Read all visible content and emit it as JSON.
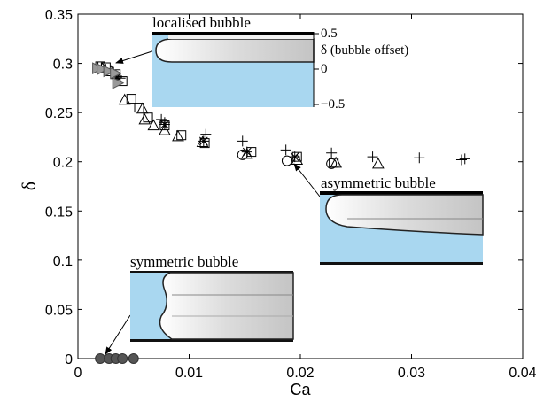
{
  "chart_data": {
    "type": "scatter",
    "xlabel": "Ca",
    "ylabel": "δ",
    "xlim": [
      0,
      0.04
    ],
    "ylim": [
      0,
      0.35
    ],
    "x_ticks": [
      "0",
      "0.01",
      "0.02",
      "0.03",
      "0.04"
    ],
    "y_ticks": [
      "0",
      "0.05",
      "0.1",
      "0.15",
      "0.2",
      "0.25",
      "0.3",
      "0.35"
    ],
    "grid": false,
    "series": [
      {
        "marker": "plus",
        "points": [
          [
            0.0018,
            0.296
          ],
          [
            0.0025,
            0.294
          ],
          [
            0.0032,
            0.291
          ],
          [
            0.0035,
            0.287
          ],
          [
            0.0038,
            0.285
          ],
          [
            0.0075,
            0.243
          ],
          [
            0.0078,
            0.24
          ],
          [
            0.0115,
            0.228
          ],
          [
            0.0148,
            0.221
          ],
          [
            0.0187,
            0.212
          ],
          [
            0.0228,
            0.209
          ],
          [
            0.0265,
            0.205
          ],
          [
            0.0307,
            0.204
          ],
          [
            0.0345,
            0.202
          ],
          [
            0.0348,
            0.203
          ]
        ]
      },
      {
        "marker": "star",
        "points": [
          [
            0.0035,
            0.286
          ],
          [
            0.0078,
            0.238
          ],
          [
            0.0113,
            0.221
          ],
          [
            0.0152,
            0.21
          ],
          [
            0.0195,
            0.205
          ]
        ]
      },
      {
        "marker": "triangle-up",
        "points": [
          [
            0.0022,
            0.295
          ],
          [
            0.003,
            0.292
          ],
          [
            0.0042,
            0.263
          ],
          [
            0.0058,
            0.254
          ],
          [
            0.006,
            0.243
          ],
          [
            0.0068,
            0.237
          ],
          [
            0.0078,
            0.232
          ],
          [
            0.009,
            0.226
          ],
          [
            0.0112,
            0.22
          ],
          [
            0.0152,
            0.208
          ],
          [
            0.0197,
            0.202
          ],
          [
            0.0232,
            0.199
          ],
          [
            0.027,
            0.198
          ]
        ]
      },
      {
        "marker": "square",
        "points": [
          [
            0.002,
            0.297
          ],
          [
            0.0025,
            0.296
          ],
          [
            0.0034,
            0.289
          ],
          [
            0.004,
            0.282
          ],
          [
            0.0048,
            0.264
          ],
          [
            0.0055,
            0.255
          ],
          [
            0.0063,
            0.245
          ],
          [
            0.0078,
            0.237
          ],
          [
            0.0093,
            0.227
          ],
          [
            0.0114,
            0.219
          ],
          [
            0.0156,
            0.21
          ],
          [
            0.0197,
            0.205
          ],
          [
            0.023,
            0.199
          ]
        ]
      },
      {
        "marker": "circle",
        "points": [
          [
            0.0148,
            0.207
          ],
          [
            0.0188,
            0.201
          ],
          [
            0.0228,
            0.198
          ]
        ]
      },
      {
        "marker": "triangle-right-filled",
        "points": [
          [
            0.0018,
            0.295
          ],
          [
            0.0022,
            0.294
          ],
          [
            0.0028,
            0.292
          ],
          [
            0.0034,
            0.29
          ],
          [
            0.0036,
            0.28
          ]
        ]
      },
      {
        "marker": "circle-filled",
        "points": [
          [
            0.002,
            0.0
          ],
          [
            0.0028,
            0.0
          ],
          [
            0.0034,
            0.0
          ],
          [
            0.004,
            0.0
          ],
          [
            0.005,
            0.0
          ]
        ]
      }
    ],
    "annotations": [
      {
        "text": "localised bubble",
        "target": [
          0.002,
          0.293
        ]
      },
      {
        "text": "asymmetric bubble",
        "target": [
          0.0196,
          0.204
        ]
      },
      {
        "text": "symmetric bubble",
        "target": [
          0.002,
          0.0
        ]
      }
    ],
    "inset_localised": {
      "title": "localised bubble",
      "axis_label": "δ (bubble offset)",
      "ticks": [
        "0.5",
        "0",
        "−0.5"
      ],
      "fluid_color": "#a9d7f0"
    },
    "inset_asymmetric": {
      "title": "asymmetric bubble"
    },
    "inset_symmetric": {
      "title": "symmetric bubble"
    }
  }
}
